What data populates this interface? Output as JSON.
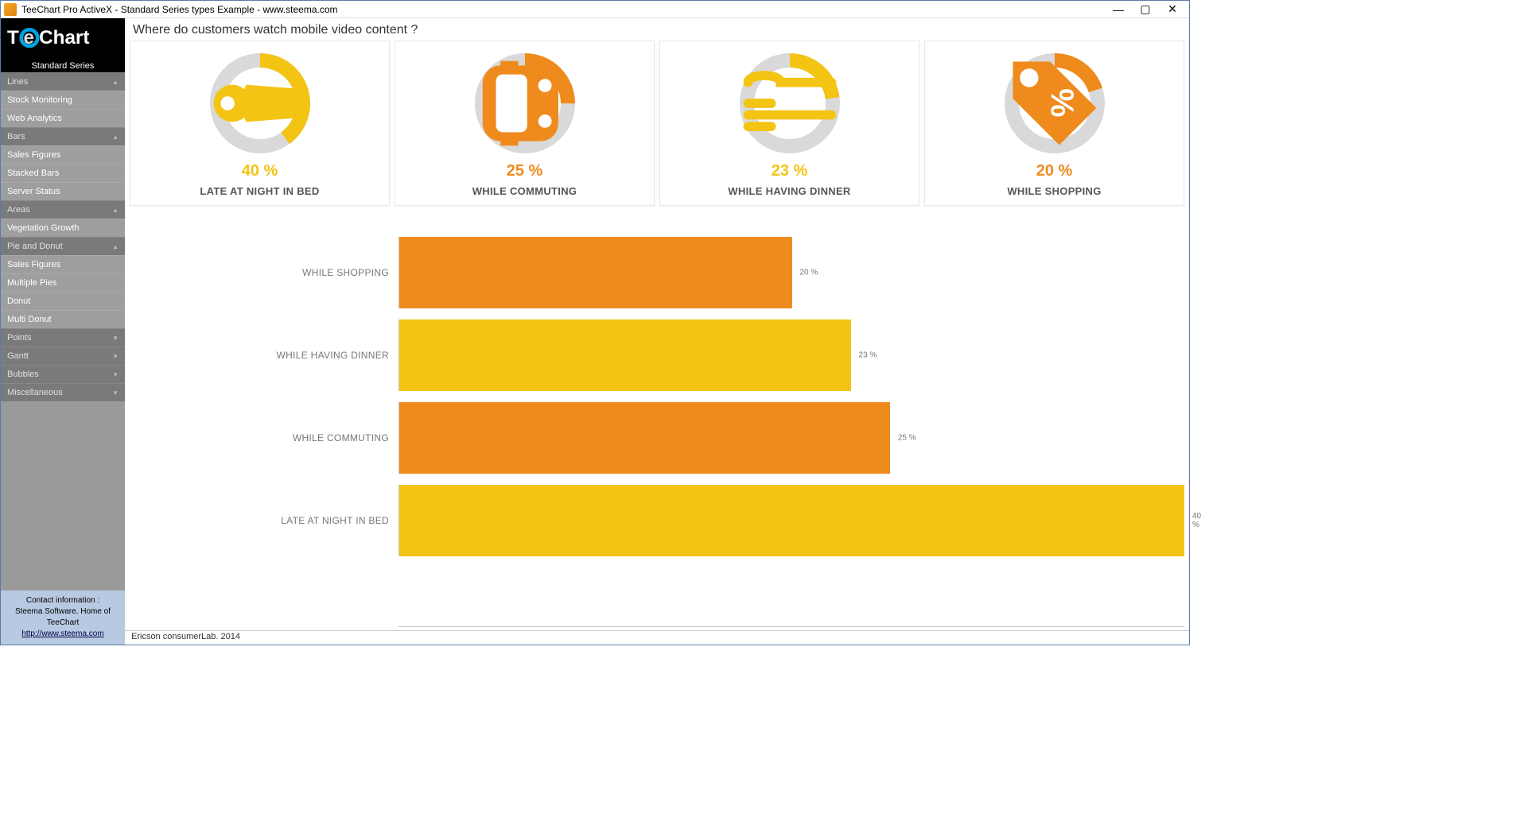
{
  "window": {
    "title": "TeeChart Pro ActiveX - Standard Series types Example - www.steema.com"
  },
  "sidebar": {
    "logo_text": "TeeChart",
    "series_title": "Standard Series",
    "groups": [
      {
        "label": "Lines",
        "expanded": true,
        "items": [
          "Stock Monitoring",
          "Web Analytics"
        ]
      },
      {
        "label": "Bars",
        "expanded": true,
        "items": [
          "Sales Figures",
          "Stacked Bars",
          "Server Status"
        ]
      },
      {
        "label": "Areas",
        "expanded": true,
        "items": [
          "Vegetation Growth"
        ]
      },
      {
        "label": "Pie and Donut",
        "expanded": true,
        "items": [
          "Sales Figures",
          "Multiple Pies",
          "Donut",
          "Multi Donut"
        ]
      },
      {
        "label": "Points",
        "expanded": false,
        "items": []
      },
      {
        "label": "Gantt",
        "expanded": false,
        "items": []
      },
      {
        "label": "Bubbles",
        "expanded": false,
        "items": []
      },
      {
        "label": "Miscellaneous",
        "expanded": false,
        "items": []
      }
    ],
    "contact": {
      "line1": "Contact information :",
      "line2": "Steema Software. Home of TeeChart",
      "url_label": "http://www.steema.com"
    }
  },
  "page": {
    "title": "Where do customers watch mobile video content ?",
    "footer": "Ericson consumerLab.   2014"
  },
  "colors": {
    "orange": "#ef8b1d",
    "yellow": "#f3c414",
    "ring_bg": "#d9d9d9"
  },
  "cards": [
    {
      "pct": 40,
      "pct_label": "40 %",
      "label": "LATE AT NIGHT IN BED",
      "color": "#f3c414",
      "icon": "bed"
    },
    {
      "pct": 25,
      "pct_label": "25 %",
      "label": "WHILE COMMUTING",
      "color": "#ef8b1d",
      "icon": "bus"
    },
    {
      "pct": 23,
      "pct_label": "23 %",
      "label": "WHILE HAVING DINNER",
      "color": "#f3c414",
      "icon": "fork"
    },
    {
      "pct": 20,
      "pct_label": "20 %",
      "label": "WHILE SHOPPING",
      "color": "#ef8b1d",
      "icon": "tag"
    }
  ],
  "bars": {
    "max": 40,
    "rows": [
      {
        "label": "WHILE SHOPPING",
        "pct": 20,
        "pct_label": "20 %",
        "color": "#ef8b1d"
      },
      {
        "label": "WHILE HAVING DINNER",
        "pct": 23,
        "pct_label": "23 %",
        "color": "#f3c414"
      },
      {
        "label": "WHILE COMMUTING",
        "pct": 25,
        "pct_label": "25 %",
        "color": "#ef8b1d"
      },
      {
        "label": "LATE AT NIGHT IN BED",
        "pct": 40,
        "pct_label": "40 %",
        "color": "#f3c414"
      }
    ]
  }
}
